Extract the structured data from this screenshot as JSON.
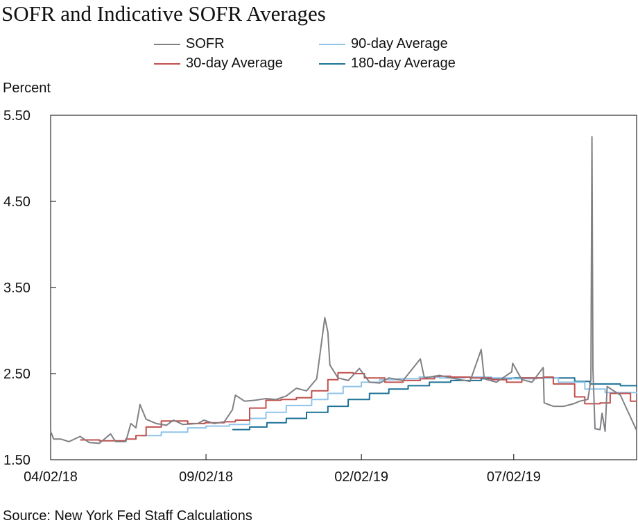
{
  "chart_data": {
    "type": "line",
    "title": "SOFR and Indicative SOFR Averages",
    "ylabel": "Percent",
    "source": "Source: New York Fed Staff Calculations",
    "ylim": [
      1.5,
      5.5
    ],
    "yticks": [
      "5.50",
      "4.50",
      "3.50",
      "2.50",
      "1.50"
    ],
    "xlim": [
      "2018-04-02",
      "2019-10-31"
    ],
    "xticks": [
      {
        "label": "04/02/18",
        "date": "2018-04-02"
      },
      {
        "label": "09/02/18",
        "date": "2018-09-02"
      },
      {
        "label": "02/02/19",
        "date": "2019-02-02"
      },
      {
        "label": "07/02/19",
        "date": "2019-07-02"
      }
    ],
    "grid": false,
    "legend_position": "top-center",
    "series": [
      {
        "name": "SOFR",
        "color": "#808085",
        "points": [
          [
            "2018-04-02",
            1.83
          ],
          [
            "2018-04-05",
            1.74
          ],
          [
            "2018-04-12",
            1.74
          ],
          [
            "2018-04-20",
            1.71
          ],
          [
            "2018-05-01",
            1.77
          ],
          [
            "2018-05-10",
            1.7
          ],
          [
            "2018-05-20",
            1.69
          ],
          [
            "2018-05-31",
            1.8
          ],
          [
            "2018-06-05",
            1.71
          ],
          [
            "2018-06-15",
            1.71
          ],
          [
            "2018-06-20",
            1.92
          ],
          [
            "2018-06-25",
            1.87
          ],
          [
            "2018-06-29",
            2.14
          ],
          [
            "2018-07-05",
            1.97
          ],
          [
            "2018-07-15",
            1.92
          ],
          [
            "2018-07-25",
            1.9
          ],
          [
            "2018-08-01",
            1.96
          ],
          [
            "2018-08-10",
            1.91
          ],
          [
            "2018-08-25",
            1.92
          ],
          [
            "2018-08-31",
            1.96
          ],
          [
            "2018-09-10",
            1.92
          ],
          [
            "2018-09-20",
            1.94
          ],
          [
            "2018-09-28",
            2.08
          ],
          [
            "2018-10-01",
            2.25
          ],
          [
            "2018-10-10",
            2.18
          ],
          [
            "2018-10-20",
            2.19
          ],
          [
            "2018-10-31",
            2.21
          ],
          [
            "2018-11-10",
            2.2
          ],
          [
            "2018-11-20",
            2.24
          ],
          [
            "2018-11-30",
            2.33
          ],
          [
            "2018-12-10",
            2.3
          ],
          [
            "2018-12-20",
            2.44
          ],
          [
            "2018-12-28",
            3.15
          ],
          [
            "2018-12-31",
            2.98
          ],
          [
            "2019-01-02",
            2.6
          ],
          [
            "2019-01-10",
            2.45
          ],
          [
            "2019-01-20",
            2.42
          ],
          [
            "2019-01-31",
            2.56
          ],
          [
            "2019-02-10",
            2.4
          ],
          [
            "2019-02-20",
            2.39
          ],
          [
            "2019-03-01",
            2.45
          ],
          [
            "2019-03-15",
            2.42
          ],
          [
            "2019-04-01",
            2.67
          ],
          [
            "2019-04-05",
            2.45
          ],
          [
            "2019-04-20",
            2.48
          ],
          [
            "2019-05-01",
            2.45
          ],
          [
            "2019-05-10",
            2.43
          ],
          [
            "2019-05-20",
            2.41
          ],
          [
            "2019-05-31",
            2.78
          ],
          [
            "2019-06-03",
            2.44
          ],
          [
            "2019-06-15",
            2.4
          ],
          [
            "2019-06-30",
            2.52
          ],
          [
            "2019-07-01",
            2.62
          ],
          [
            "2019-07-10",
            2.43
          ],
          [
            "2019-07-20",
            2.4
          ],
          [
            "2019-07-31",
            2.57
          ],
          [
            "2019-08-01",
            2.16
          ],
          [
            "2019-08-10",
            2.12
          ],
          [
            "2019-08-20",
            2.12
          ],
          [
            "2019-08-30",
            2.15
          ],
          [
            "2019-09-05",
            2.18
          ],
          [
            "2019-09-13",
            2.2
          ],
          [
            "2019-09-16",
            2.43
          ],
          [
            "2019-09-17",
            5.25
          ],
          [
            "2019-09-18",
            2.55
          ],
          [
            "2019-09-20",
            1.86
          ],
          [
            "2019-09-25",
            1.85
          ],
          [
            "2019-09-27",
            2.04
          ],
          [
            "2019-09-30",
            1.83
          ],
          [
            "2019-10-02",
            2.35
          ],
          [
            "2019-10-15",
            2.25
          ],
          [
            "2019-10-31",
            1.84
          ]
        ]
      },
      {
        "name": "30-day Average",
        "color": "#c0504d",
        "points": [
          [
            "2018-05-01",
            1.73
          ],
          [
            "2018-05-20",
            1.72
          ],
          [
            "2018-06-15",
            1.74
          ],
          [
            "2018-06-25",
            1.78
          ],
          [
            "2018-07-05",
            1.88
          ],
          [
            "2018-07-20",
            1.95
          ],
          [
            "2018-08-01",
            1.95
          ],
          [
            "2018-08-15",
            1.92
          ],
          [
            "2018-09-01",
            1.93
          ],
          [
            "2018-09-20",
            1.94
          ],
          [
            "2018-10-01",
            1.96
          ],
          [
            "2018-10-15",
            2.1
          ],
          [
            "2018-10-31",
            2.19
          ],
          [
            "2018-11-15",
            2.2
          ],
          [
            "2018-11-30",
            2.22
          ],
          [
            "2018-12-15",
            2.3
          ],
          [
            "2018-12-31",
            2.43
          ],
          [
            "2019-01-10",
            2.51
          ],
          [
            "2019-01-25",
            2.5
          ],
          [
            "2019-02-05",
            2.45
          ],
          [
            "2019-02-25",
            2.4
          ],
          [
            "2019-03-15",
            2.42
          ],
          [
            "2019-04-01",
            2.44
          ],
          [
            "2019-04-15",
            2.47
          ],
          [
            "2019-05-01",
            2.46
          ],
          [
            "2019-05-20",
            2.45
          ],
          [
            "2019-06-10",
            2.43
          ],
          [
            "2019-06-25",
            2.4
          ],
          [
            "2019-07-10",
            2.45
          ],
          [
            "2019-07-31",
            2.46
          ],
          [
            "2019-08-10",
            2.38
          ],
          [
            "2019-08-31",
            2.23
          ],
          [
            "2019-09-10",
            2.15
          ],
          [
            "2019-09-25",
            2.16
          ],
          [
            "2019-10-05",
            2.27
          ],
          [
            "2019-10-25",
            2.18
          ],
          [
            "2019-10-31",
            2.18
          ]
        ]
      },
      {
        "name": "90-day Average",
        "color": "#8fc3ea",
        "points": [
          [
            "2018-07-01",
            1.78
          ],
          [
            "2018-07-20",
            1.82
          ],
          [
            "2018-08-15",
            1.87
          ],
          [
            "2018-09-02",
            1.89
          ],
          [
            "2018-09-25",
            1.91
          ],
          [
            "2018-10-15",
            1.98
          ],
          [
            "2018-10-31",
            2.05
          ],
          [
            "2018-11-20",
            2.13
          ],
          [
            "2018-12-15",
            2.2
          ],
          [
            "2018-12-31",
            2.27
          ],
          [
            "2019-01-15",
            2.35
          ],
          [
            "2019-02-02",
            2.4
          ],
          [
            "2019-02-20",
            2.43
          ],
          [
            "2019-03-10",
            2.44
          ],
          [
            "2019-03-31",
            2.46
          ],
          [
            "2019-04-20",
            2.45
          ],
          [
            "2019-05-15",
            2.46
          ],
          [
            "2019-06-10",
            2.45
          ],
          [
            "2019-07-02",
            2.44
          ],
          [
            "2019-07-25",
            2.45
          ],
          [
            "2019-08-15",
            2.4
          ],
          [
            "2019-09-10",
            2.32
          ],
          [
            "2019-09-30",
            2.28
          ],
          [
            "2019-10-31",
            2.27
          ]
        ]
      },
      {
        "name": "180-day Average",
        "color": "#1b7196",
        "points": [
          [
            "2018-09-28",
            1.85
          ],
          [
            "2018-10-15",
            1.88
          ],
          [
            "2018-11-01",
            1.93
          ],
          [
            "2018-11-20",
            1.98
          ],
          [
            "2018-12-10",
            2.05
          ],
          [
            "2018-12-31",
            2.12
          ],
          [
            "2019-01-20",
            2.2
          ],
          [
            "2019-02-10",
            2.27
          ],
          [
            "2019-03-01",
            2.32
          ],
          [
            "2019-03-20",
            2.36
          ],
          [
            "2019-04-10",
            2.4
          ],
          [
            "2019-05-01",
            2.42
          ],
          [
            "2019-05-31",
            2.44
          ],
          [
            "2019-06-30",
            2.45
          ],
          [
            "2019-07-31",
            2.45
          ],
          [
            "2019-08-31",
            2.41
          ],
          [
            "2019-09-15",
            2.38
          ],
          [
            "2019-10-15",
            2.36
          ],
          [
            "2019-10-31",
            2.35
          ]
        ]
      }
    ]
  }
}
